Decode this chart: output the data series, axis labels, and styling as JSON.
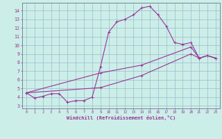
{
  "xlabel": "Windchill (Refroidissement éolien,°C)",
  "bg_color": "#cceee8",
  "line_color": "#993399",
  "grid_color": "#99bbcc",
  "xlim": [
    -0.5,
    23.5
  ],
  "ylim": [
    2.7,
    14.9
  ],
  "xticks": [
    0,
    1,
    2,
    3,
    4,
    5,
    6,
    7,
    8,
    9,
    10,
    11,
    12,
    13,
    14,
    15,
    16,
    17,
    18,
    19,
    20,
    21,
    22,
    23
  ],
  "yticks": [
    3,
    4,
    5,
    6,
    7,
    8,
    9,
    10,
    11,
    12,
    13,
    14
  ],
  "curve1_x": [
    0,
    1,
    2,
    3,
    4,
    5,
    6,
    7,
    8,
    9,
    10,
    11,
    12,
    13,
    14,
    15,
    16,
    17,
    18,
    19,
    20,
    21,
    22,
    23
  ],
  "curve1_y": [
    4.5,
    3.9,
    4.1,
    4.4,
    4.4,
    3.4,
    3.6,
    3.6,
    4.0,
    7.5,
    11.5,
    12.7,
    13.0,
    13.5,
    14.3,
    14.5,
    13.5,
    12.2,
    10.3,
    10.1,
    10.3,
    8.5,
    8.8,
    8.5
  ],
  "curve2_x": [
    0,
    9,
    14,
    20,
    21,
    22,
    23
  ],
  "curve2_y": [
    4.5,
    5.1,
    6.5,
    9.0,
    8.5,
    8.8,
    8.5
  ],
  "curve3_x": [
    0,
    9,
    14,
    20,
    21,
    22,
    23
  ],
  "curve3_y": [
    4.5,
    6.8,
    7.7,
    9.8,
    8.5,
    8.8,
    8.5
  ]
}
